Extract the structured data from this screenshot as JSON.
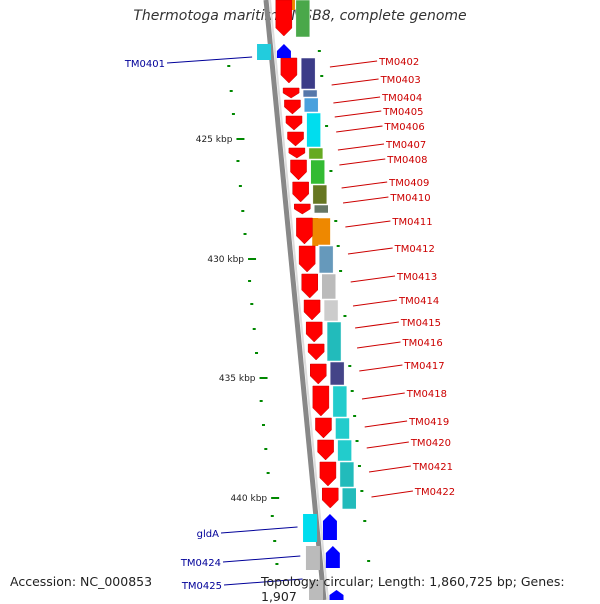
{
  "title": "Thermotoga maritima MSB8, complete genome",
  "footer": {
    "accession": "Accession: NC_000853",
    "topology": "Topology: circular; Length: 1,860,725 bp; Genes: 1,907"
  },
  "scale_labels": [
    "425 kbp",
    "430 kbp",
    "435 kbp",
    "440 kbp"
  ],
  "genes_right": [
    "TM0402",
    "TM0403",
    "TM0404",
    "TM0405",
    "TM0406",
    "TM0407",
    "TM0408",
    "TM0409",
    "TM0410",
    "TM0411",
    "TM0412",
    "TM0413",
    "TM0414",
    "TM0415",
    "TM0416",
    "TM0417",
    "TM0418",
    "TM0419",
    "TM0420",
    "TM0421",
    "TM0422"
  ],
  "genes_left": [
    "TM0401",
    "gldA",
    "TM0424",
    "TM0425"
  ],
  "colors": {
    "forward_strand": "#0000ff",
    "reverse_strand": "#ff0000",
    "right_label": "#cc0000",
    "left_label": "#000099",
    "tick": "#008800"
  }
}
